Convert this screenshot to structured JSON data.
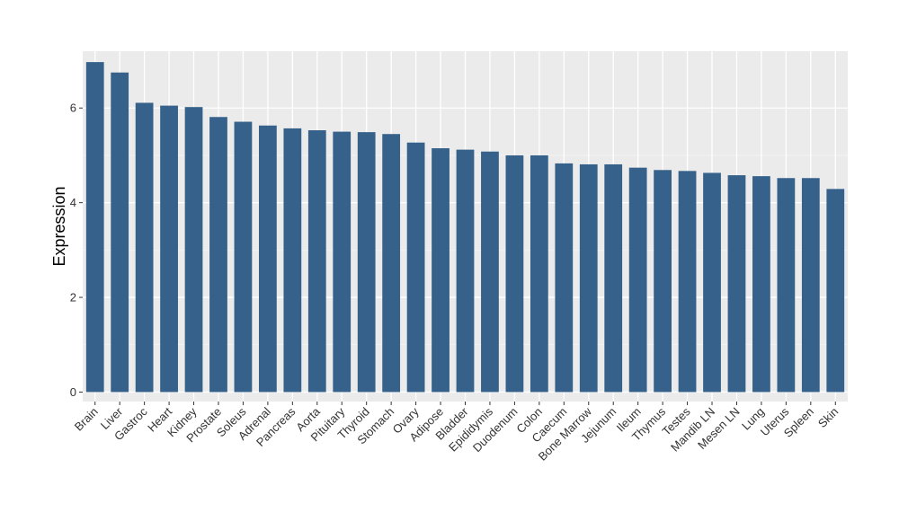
{
  "chart_data": {
    "type": "bar",
    "title": "",
    "xlabel": "",
    "ylabel": "Expression",
    "ylim": [
      -0.2,
      7.2
    ],
    "yticks": [
      0,
      2,
      4,
      6
    ],
    "grid": true,
    "legend": "none",
    "colors": {
      "bar": "#35618a",
      "panel": "#ebebeb",
      "grid_major": "#ffffff",
      "grid_minor": "#f5f5f5"
    },
    "categories": [
      "Brain",
      "Liver",
      "Gastroc",
      "Heart",
      "Kidney",
      "Prostate",
      "Soleus",
      "Adrenal",
      "Pancreas",
      "Aorta",
      "Pituitary",
      "Thyroid",
      "Stomach",
      "Ovary",
      "Adipose",
      "Bladder",
      "Epididymis",
      "Duodenum",
      "Colon",
      "Caecum",
      "Bone Marrow",
      "Jejunum",
      "Ileum",
      "Thymus",
      "Testes",
      "Mandib LN",
      "Mesen LN",
      "Lung",
      "Uterus",
      "Spleen",
      "Skin"
    ],
    "values": [
      6.97,
      6.75,
      6.11,
      6.05,
      6.02,
      5.81,
      5.71,
      5.63,
      5.57,
      5.53,
      5.5,
      5.49,
      5.45,
      5.27,
      5.15,
      5.12,
      5.08,
      5.0,
      5.0,
      4.83,
      4.81,
      4.81,
      4.74,
      4.69,
      4.67,
      4.63,
      4.58,
      4.56,
      4.52,
      4.52,
      4.29
    ]
  }
}
